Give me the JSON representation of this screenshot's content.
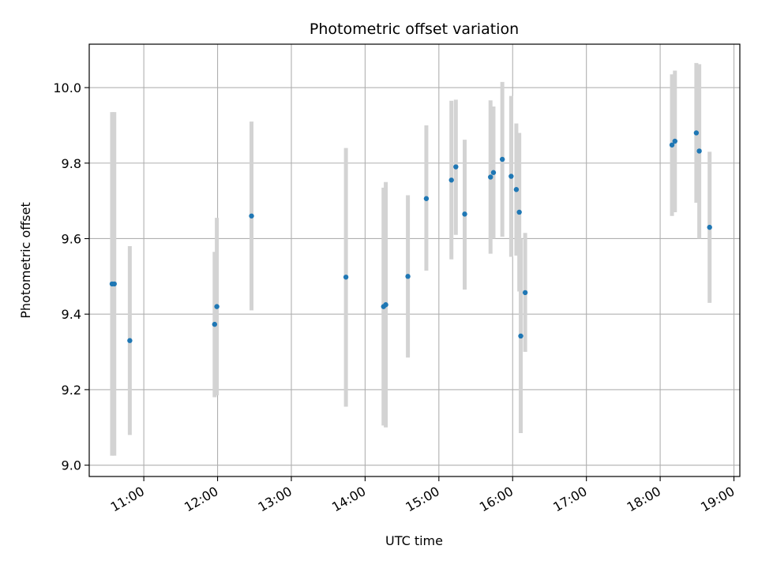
{
  "chart_data": {
    "type": "scatter",
    "title": "Photometric offset variation",
    "xlabel": "UTC time",
    "ylabel": "Photometric offset",
    "x_unit": "hours UTC (decimal)",
    "xlim": [
      10.26,
      19.08
    ],
    "ylim": [
      8.97,
      10.115
    ],
    "x_ticks": [
      11,
      12,
      13,
      14,
      15,
      16,
      17,
      18,
      19
    ],
    "x_tick_labels": [
      "11:00",
      "12:00",
      "13:00",
      "14:00",
      "15:00",
      "16:00",
      "17:00",
      "18:00",
      "19:00"
    ],
    "y_ticks": [
      9.0,
      9.2,
      9.4,
      9.6,
      9.8,
      10.0
    ],
    "y_tick_labels": [
      "9.0",
      "9.2",
      "9.4",
      "9.6",
      "9.8",
      "10.0"
    ],
    "grid": true,
    "colors": {
      "point": "#1f77b4",
      "errorbar": "#d3d3d3",
      "grid": "#b0b0b0"
    },
    "points": [
      {
        "x": 10.57,
        "y": 9.48,
        "lo": 9.025,
        "hi": 9.935
      },
      {
        "x": 10.6,
        "y": 9.48,
        "lo": 9.025,
        "hi": 9.935
      },
      {
        "x": 10.81,
        "y": 9.33,
        "lo": 9.08,
        "hi": 9.58
      },
      {
        "x": 11.96,
        "y": 9.373,
        "lo": 9.18,
        "hi": 9.565
      },
      {
        "x": 11.99,
        "y": 9.42,
        "lo": 9.185,
        "hi": 9.655
      },
      {
        "x": 12.46,
        "y": 9.66,
        "lo": 9.41,
        "hi": 9.91
      },
      {
        "x": 13.74,
        "y": 9.498,
        "lo": 9.155,
        "hi": 9.84
      },
      {
        "x": 14.25,
        "y": 9.42,
        "lo": 9.105,
        "hi": 9.735
      },
      {
        "x": 14.28,
        "y": 9.425,
        "lo": 9.1,
        "hi": 9.75
      },
      {
        "x": 14.58,
        "y": 9.5,
        "lo": 9.285,
        "hi": 9.715
      },
      {
        "x": 14.83,
        "y": 9.706,
        "lo": 9.515,
        "hi": 9.9
      },
      {
        "x": 15.17,
        "y": 9.755,
        "lo": 9.545,
        "hi": 9.965
      },
      {
        "x": 15.23,
        "y": 9.79,
        "lo": 9.61,
        "hi": 9.968
      },
      {
        "x": 15.35,
        "y": 9.665,
        "lo": 9.465,
        "hi": 9.862
      },
      {
        "x": 15.7,
        "y": 9.763,
        "lo": 9.56,
        "hi": 9.966
      },
      {
        "x": 15.74,
        "y": 9.775,
        "lo": 9.6,
        "hi": 9.95
      },
      {
        "x": 15.86,
        "y": 9.81,
        "lo": 9.605,
        "hi": 10.015
      },
      {
        "x": 15.98,
        "y": 9.765,
        "lo": 9.552,
        "hi": 9.978
      },
      {
        "x": 16.05,
        "y": 9.73,
        "lo": 9.555,
        "hi": 9.905
      },
      {
        "x": 16.09,
        "y": 9.67,
        "lo": 9.46,
        "hi": 9.88
      },
      {
        "x": 16.11,
        "y": 9.342,
        "lo": 9.085,
        "hi": 9.6
      },
      {
        "x": 16.17,
        "y": 9.457,
        "lo": 9.3,
        "hi": 9.615
      },
      {
        "x": 18.16,
        "y": 9.848,
        "lo": 9.66,
        "hi": 10.035
      },
      {
        "x": 18.2,
        "y": 9.858,
        "lo": 9.67,
        "hi": 10.045
      },
      {
        "x": 18.49,
        "y": 9.88,
        "lo": 9.695,
        "hi": 10.065
      },
      {
        "x": 18.53,
        "y": 9.832,
        "lo": 9.6,
        "hi": 10.062
      },
      {
        "x": 18.67,
        "y": 9.63,
        "lo": 9.43,
        "hi": 9.83
      }
    ]
  }
}
